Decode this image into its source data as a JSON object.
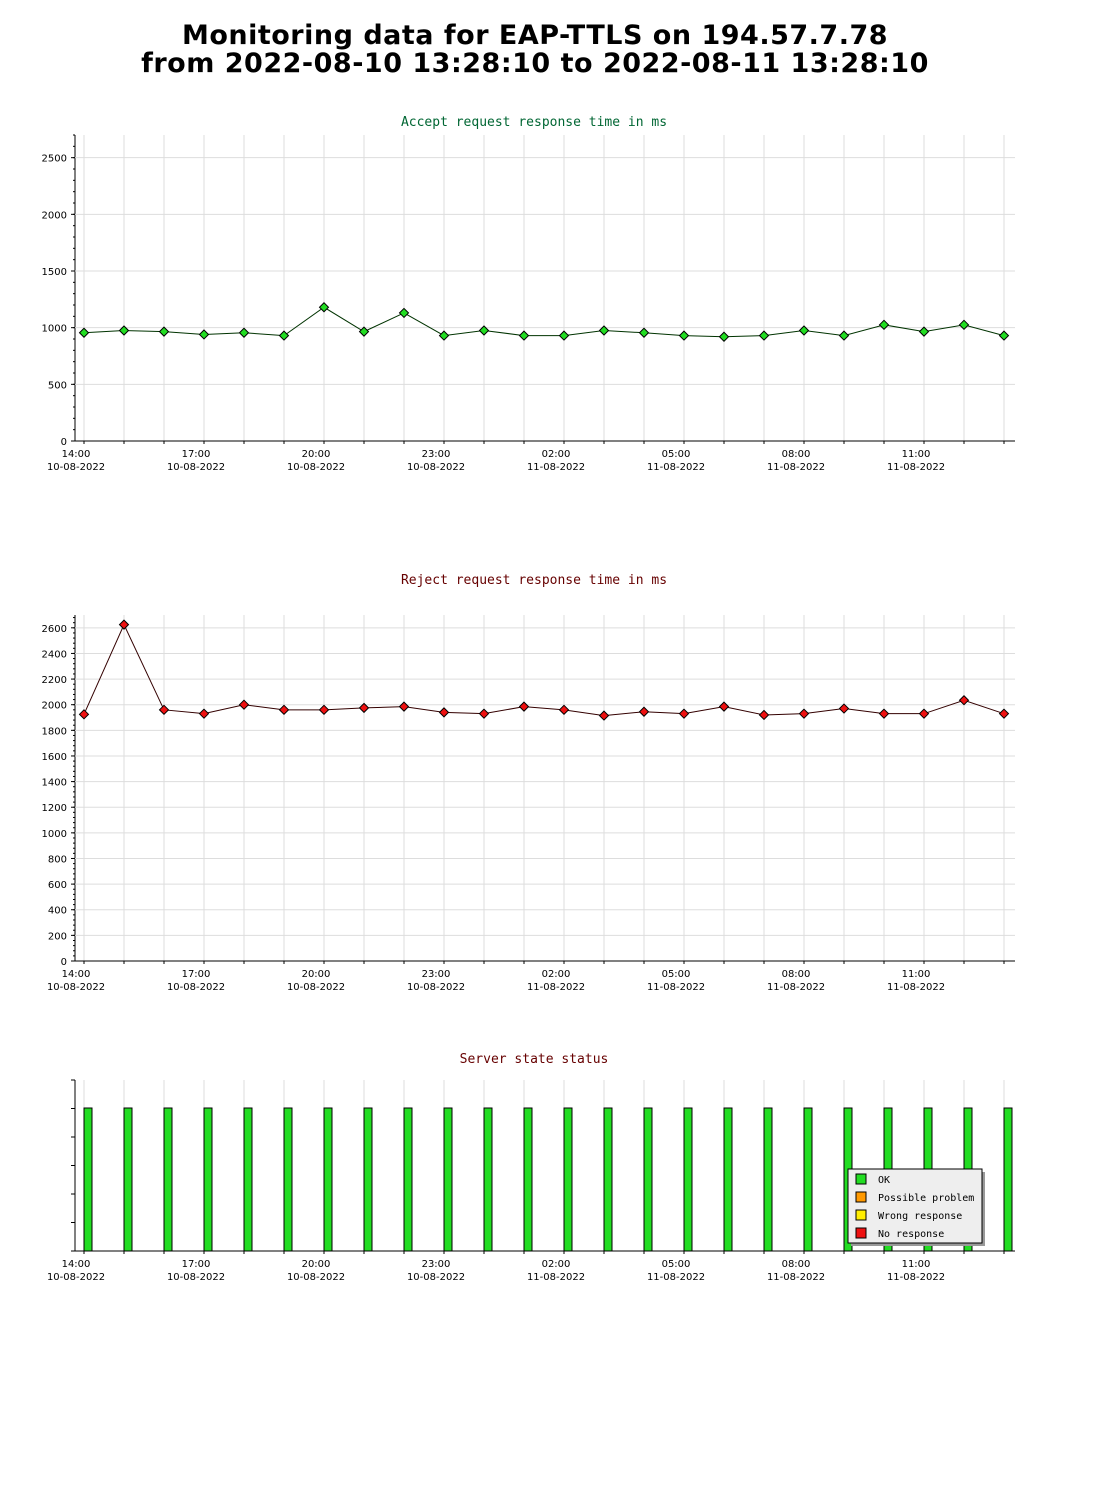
{
  "page": {
    "title_line1": "Monitoring data for EAP-TTLS on 194.57.7.78",
    "title_line2": "from 2022-08-10 13:28:10 to 2022-08-11 13:28:10"
  },
  "colors": {
    "accept_title": "#006633",
    "reject_title": "#660000",
    "status_title": "#660000",
    "accept_point": "#22dd22",
    "accept_line": "#003300",
    "reject_point": "#ee1111",
    "reject_line": "#330000",
    "ok": "#22dd22",
    "possible_problem": "#ff9900",
    "wrong_response": "#ffee00",
    "no_response": "#ee1111",
    "grid": "#dddddd"
  },
  "x_axis": {
    "ticks": [
      {
        "time": "14:00",
        "date": "10-08-2022"
      },
      {
        "time": "17:00",
        "date": "10-08-2022"
      },
      {
        "time": "20:00",
        "date": "10-08-2022"
      },
      {
        "time": "23:00",
        "date": "10-08-2022"
      },
      {
        "time": "02:00",
        "date": "11-08-2022"
      },
      {
        "time": "05:00",
        "date": "11-08-2022"
      },
      {
        "time": "08:00",
        "date": "11-08-2022"
      },
      {
        "time": "11:00",
        "date": "11-08-2022"
      }
    ]
  },
  "chart_data": [
    {
      "type": "line",
      "title": "Accept request response time in ms",
      "ylim": [
        0,
        2700
      ],
      "yticks": [
        0,
        500,
        1000,
        1500,
        2000,
        2500
      ],
      "x_hours": [
        14.0,
        15.0,
        16.0,
        17.0,
        18.0,
        19.0,
        20.0,
        21.0,
        22.0,
        23.0,
        24.0,
        25.0,
        26.0,
        27.0,
        28.0,
        29.0,
        30.0,
        31.0,
        32.0,
        33.0,
        34.0,
        35.0,
        36.0,
        37.0
      ],
      "values": [
        955,
        975,
        965,
        940,
        955,
        930,
        1180,
        965,
        1130,
        930,
        975,
        930,
        930,
        975,
        955,
        930,
        920,
        930,
        975,
        930,
        1025,
        965,
        1025,
        930
      ],
      "grid": true
    },
    {
      "type": "line",
      "title": "Reject request response time in ms",
      "ylim": [
        0,
        2700
      ],
      "yticks": [
        0,
        200,
        400,
        600,
        800,
        1000,
        1200,
        1400,
        1600,
        1800,
        2000,
        2200,
        2400,
        2600
      ],
      "x_hours": [
        14.0,
        15.0,
        16.0,
        17.0,
        18.0,
        19.0,
        20.0,
        21.0,
        22.0,
        23.0,
        24.0,
        25.0,
        26.0,
        27.0,
        28.0,
        29.0,
        30.0,
        31.0,
        32.0,
        33.0,
        34.0,
        35.0,
        36.0,
        37.0
      ],
      "values": [
        1925,
        2625,
        1960,
        1930,
        2000,
        1960,
        1960,
        1975,
        1985,
        1940,
        1930,
        1985,
        1960,
        1915,
        1945,
        1930,
        1985,
        1920,
        1930,
        1970,
        1930,
        1930,
        2035,
        1930
      ],
      "grid": true
    },
    {
      "type": "bar",
      "title": "Server state status",
      "x_hours": [
        14.0,
        15.0,
        16.0,
        17.0,
        18.0,
        19.0,
        20.0,
        21.0,
        22.0,
        23.0,
        24.0,
        25.0,
        26.0,
        27.0,
        28.0,
        29.0,
        30.0,
        31.0,
        32.0,
        33.0,
        34.0,
        35.0,
        36.0,
        37.0
      ],
      "states": [
        "OK",
        "OK",
        "OK",
        "OK",
        "OK",
        "OK",
        "OK",
        "OK",
        "OK",
        "OK",
        "OK",
        "OK",
        "OK",
        "OK",
        "OK",
        "OK",
        "OK",
        "OK",
        "OK",
        "OK",
        "OK",
        "OK",
        "OK",
        "OK"
      ],
      "legend": [
        "OK",
        "Possible problem",
        "Wrong response",
        "No response"
      ],
      "legend_position": "bottom-right"
    }
  ]
}
